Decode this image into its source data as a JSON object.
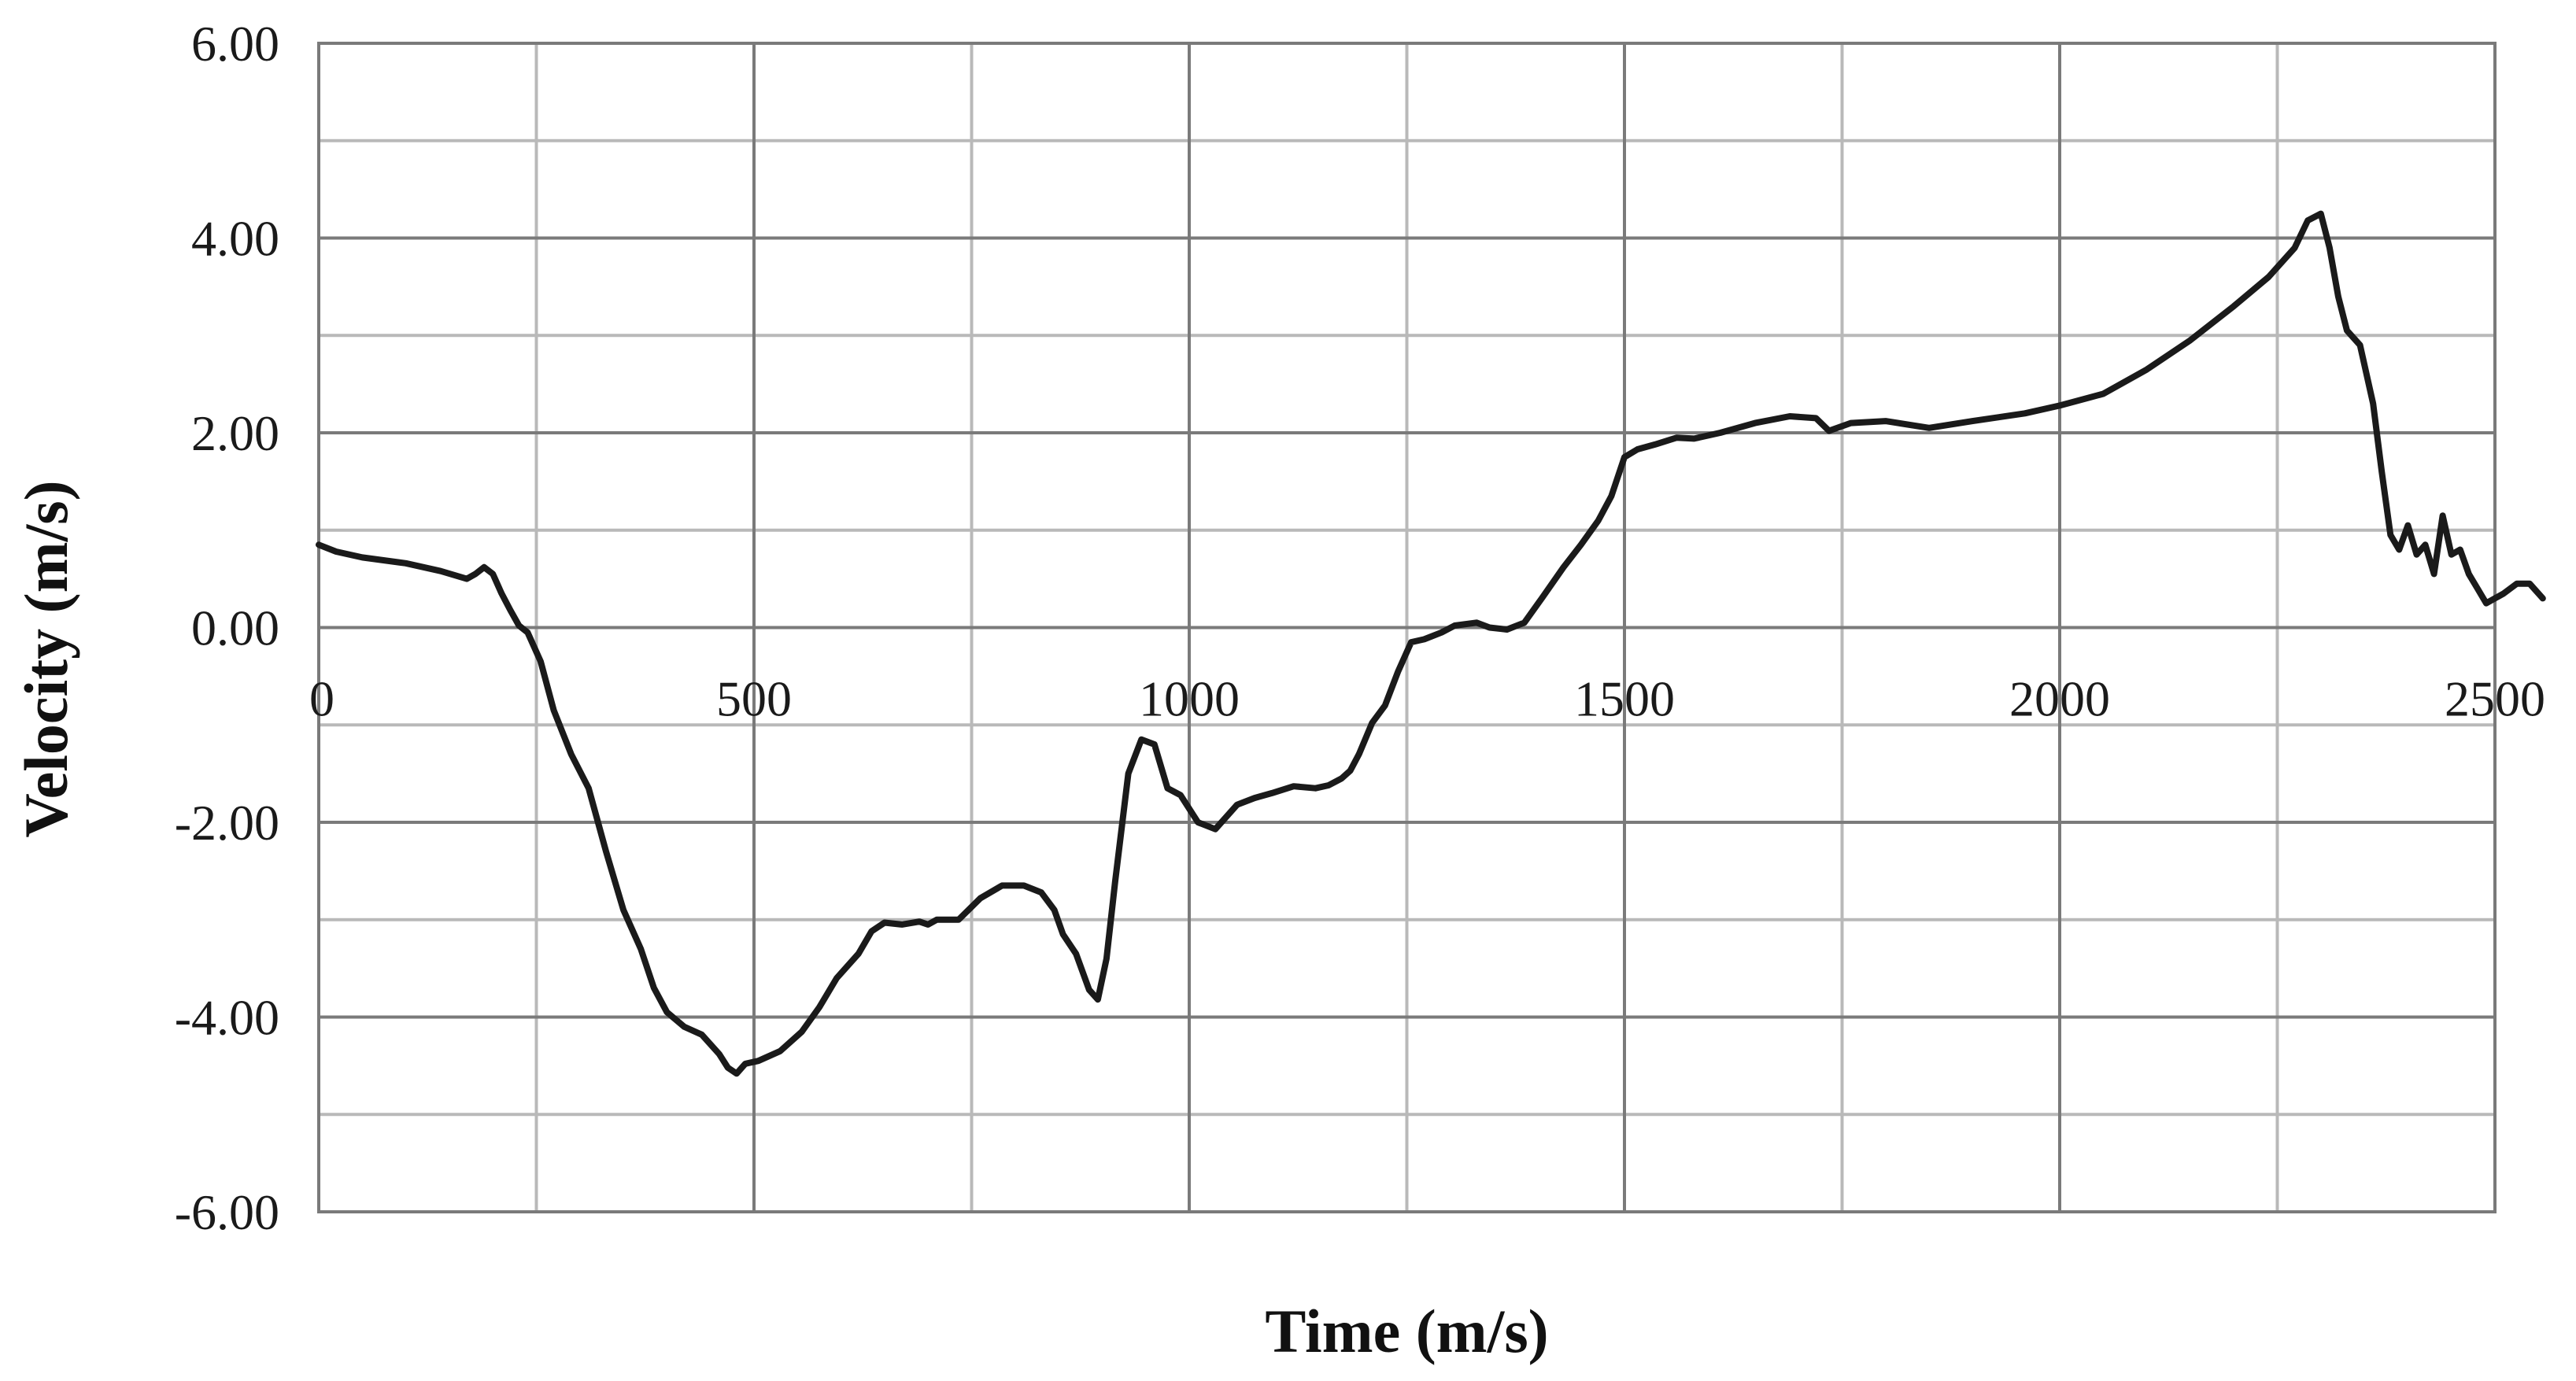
{
  "chart_data": {
    "type": "line",
    "title": "",
    "xlabel": "Time (m/s)",
    "ylabel": "Velocity (m/s)",
    "xlim": [
      0,
      2500
    ],
    "ylim": [
      -6,
      6
    ],
    "x_ticks": [
      0,
      500,
      1000,
      1500,
      2000,
      2500
    ],
    "x_tick_labels": [
      "0",
      "500",
      "1000",
      "1500",
      "2000",
      "2500"
    ],
    "y_ticks": [
      6,
      4,
      2,
      0,
      -2,
      -4,
      -6
    ],
    "y_tick_labels": [
      "6.00",
      "4.00",
      "2.00",
      "0.00",
      "-2.00",
      "-4.00",
      "-6.00"
    ],
    "x_minor_step": 250,
    "y_minor_step": 1,
    "grid": true,
    "legend": "none",
    "line_color": "#1a1a1a",
    "series": [
      {
        "points": [
          [
            0,
            0.85
          ],
          [
            20,
            0.78
          ],
          [
            50,
            0.72
          ],
          [
            100,
            0.66
          ],
          [
            140,
            0.58
          ],
          [
            170,
            0.5
          ],
          [
            180,
            0.55
          ],
          [
            190,
            0.62
          ],
          [
            200,
            0.55
          ],
          [
            210,
            0.35
          ],
          [
            220,
            0.18
          ],
          [
            230,
            0.02
          ],
          [
            240,
            -0.05
          ],
          [
            255,
            -0.35
          ],
          [
            270,
            -0.85
          ],
          [
            290,
            -1.3
          ],
          [
            310,
            -1.65
          ],
          [
            330,
            -2.3
          ],
          [
            350,
            -2.9
          ],
          [
            370,
            -3.3
          ],
          [
            385,
            -3.7
          ],
          [
            400,
            -3.95
          ],
          [
            420,
            -4.1
          ],
          [
            440,
            -4.18
          ],
          [
            460,
            -4.38
          ],
          [
            470,
            -4.52
          ],
          [
            480,
            -4.58
          ],
          [
            490,
            -4.48
          ],
          [
            505,
            -4.45
          ],
          [
            530,
            -4.35
          ],
          [
            555,
            -4.15
          ],
          [
            575,
            -3.9
          ],
          [
            595,
            -3.6
          ],
          [
            620,
            -3.35
          ],
          [
            635,
            -3.12
          ],
          [
            650,
            -3.03
          ],
          [
            670,
            -3.05
          ],
          [
            690,
            -3.02
          ],
          [
            700,
            -3.05
          ],
          [
            710,
            -3.0
          ],
          [
            735,
            -3.0
          ],
          [
            760,
            -2.78
          ],
          [
            785,
            -2.65
          ],
          [
            810,
            -2.65
          ],
          [
            830,
            -2.72
          ],
          [
            845,
            -2.9
          ],
          [
            855,
            -3.15
          ],
          [
            870,
            -3.35
          ],
          [
            885,
            -3.72
          ],
          [
            895,
            -3.82
          ],
          [
            905,
            -3.4
          ],
          [
            915,
            -2.6
          ],
          [
            930,
            -1.5
          ],
          [
            945,
            -1.15
          ],
          [
            960,
            -1.2
          ],
          [
            975,
            -1.65
          ],
          [
            990,
            -1.72
          ],
          [
            1010,
            -2.0
          ],
          [
            1030,
            -2.07
          ],
          [
            1055,
            -1.82
          ],
          [
            1075,
            -1.75
          ],
          [
            1095,
            -1.7
          ],
          [
            1120,
            -1.63
          ],
          [
            1145,
            -1.65
          ],
          [
            1160,
            -1.62
          ],
          [
            1175,
            -1.55
          ],
          [
            1185,
            -1.47
          ],
          [
            1195,
            -1.3
          ],
          [
            1210,
            -0.98
          ],
          [
            1225,
            -0.8
          ],
          [
            1240,
            -0.45
          ],
          [
            1255,
            -0.15
          ],
          [
            1270,
            -0.12
          ],
          [
            1290,
            -0.05
          ],
          [
            1305,
            0.02
          ],
          [
            1330,
            0.05
          ],
          [
            1345,
            0.0
          ],
          [
            1365,
            -0.02
          ],
          [
            1385,
            0.05
          ],
          [
            1405,
            0.3
          ],
          [
            1430,
            0.62
          ],
          [
            1450,
            0.85
          ],
          [
            1470,
            1.1
          ],
          [
            1485,
            1.35
          ],
          [
            1500,
            1.75
          ],
          [
            1515,
            1.83
          ],
          [
            1535,
            1.88
          ],
          [
            1560,
            1.95
          ],
          [
            1580,
            1.94
          ],
          [
            1610,
            2.0
          ],
          [
            1650,
            2.1
          ],
          [
            1690,
            2.17
          ],
          [
            1720,
            2.15
          ],
          [
            1735,
            2.02
          ],
          [
            1760,
            2.1
          ],
          [
            1800,
            2.12
          ],
          [
            1850,
            2.05
          ],
          [
            1900,
            2.12
          ],
          [
            1960,
            2.2
          ],
          [
            2000,
            2.28
          ],
          [
            2050,
            2.4
          ],
          [
            2100,
            2.65
          ],
          [
            2150,
            2.95
          ],
          [
            2200,
            3.3
          ],
          [
            2240,
            3.6
          ],
          [
            2270,
            3.9
          ],
          [
            2285,
            4.18
          ],
          [
            2300,
            4.25
          ],
          [
            2310,
            3.9
          ],
          [
            2320,
            3.4
          ],
          [
            2330,
            3.05
          ],
          [
            2345,
            2.9
          ],
          [
            2360,
            2.3
          ],
          [
            2370,
            1.6
          ],
          [
            2380,
            0.95
          ],
          [
            2390,
            0.8
          ],
          [
            2400,
            1.05
          ],
          [
            2410,
            0.75
          ],
          [
            2420,
            0.85
          ],
          [
            2430,
            0.55
          ],
          [
            2440,
            1.15
          ],
          [
            2450,
            0.75
          ],
          [
            2460,
            0.8
          ],
          [
            2470,
            0.55
          ],
          [
            2480,
            0.4
          ],
          [
            2490,
            0.25
          ],
          [
            2500,
            0.3
          ],
          [
            2510,
            0.35
          ],
          [
            2525,
            0.45
          ],
          [
            2540,
            0.45
          ],
          [
            2555,
            0.3
          ]
        ]
      }
    ]
  }
}
